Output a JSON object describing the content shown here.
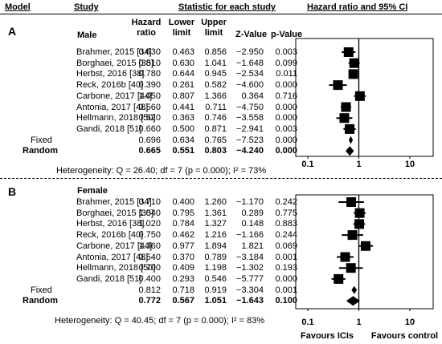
{
  "header": {
    "model": "Model",
    "study": "Study",
    "stats": "Statistic for each study",
    "forest": "Hazard ratio and 95% CI",
    "col_hr": [
      "Hazard",
      "ratio"
    ],
    "col_lower": [
      "Lower",
      "limit"
    ],
    "col_upper": [
      "Upper",
      "limit"
    ],
    "col_z": "Z-Value",
    "col_p": "p-Value"
  },
  "chart_data": {
    "type": "forest",
    "x_scale": "log",
    "xlim": [
      0.1,
      10
    ],
    "ticks": [
      "0.1",
      "1",
      "10"
    ],
    "reference_line": 1,
    "x_axis_captions": [
      "Favours  ICIs",
      "Favours control"
    ],
    "panels": [
      {
        "label": "A",
        "subgroup": "Male",
        "studies": [
          {
            "study": "Brahmer, 2015 [34]",
            "hr": "0.630",
            "lower": "0.463",
            "upper": "0.856",
            "z": "−2.950",
            "p": "0.003"
          },
          {
            "study": "Borghaei, 2015 [35]",
            "hr": "0.810",
            "lower": "0.630",
            "upper": "1.041",
            "z": "−1.648",
            "p": "0.099"
          },
          {
            "study": "Herbst, 2016 [38]",
            "hr": "0.780",
            "lower": "0.644",
            "upper": "0.945",
            "z": "−2.534",
            "p": "0.011"
          },
          {
            "study": "Reck, 2016b [40]",
            "hr": "0.390",
            "lower": "0.261",
            "upper": "0.582",
            "z": "−4.600",
            "p": "0.000"
          },
          {
            "study": "Carbone, 2017 [44]",
            "hr": "1.050",
            "lower": "0.807",
            "upper": "1.366",
            "z": "0.364",
            "p": "0.716"
          },
          {
            "study": "Antonia, 2017 [48]",
            "hr": "0.560",
            "lower": "0.441",
            "upper": "0.711",
            "z": "−4.750",
            "p": "0.000"
          },
          {
            "study": "Hellmann, 2018 [50]",
            "hr": "0.520",
            "lower": "0.363",
            "upper": "0.746",
            "z": "−3.558",
            "p": "0.000"
          },
          {
            "study": "Gandi, 2018 [51]",
            "hr": "0.660",
            "lower": "0.500",
            "upper": "0.871",
            "z": "−2.941",
            "p": "0.003"
          }
        ],
        "fixed": {
          "label": "Fixed",
          "hr": "0.696",
          "lower": "0.634",
          "upper": "0.765",
          "z": "−7.523",
          "p": "0.000"
        },
        "random": {
          "label": "Random",
          "hr": "0.665",
          "lower": "0.551",
          "upper": "0.803",
          "z": "−4.240",
          "p": "0.000"
        },
        "heterogeneity": "Heterogeneity: Q = 26.40; df = 7 (p = 0.000); I² = 73%"
      },
      {
        "label": "B",
        "subgroup": "Female",
        "studies": [
          {
            "study": "Brahmer, 2015 [34]",
            "hr": "0.710",
            "lower": "0.400",
            "upper": "1.260",
            "z": "−1.170",
            "p": "0.242"
          },
          {
            "study": "Borghaei, 2015 [35]",
            "hr": "1.040",
            "lower": "0.795",
            "upper": "1.361",
            "z": "0.289",
            "p": "0.775"
          },
          {
            "study": "Herbst, 2016 [38]",
            "hr": "1.020",
            "lower": "0.784",
            "upper": "1.327",
            "z": "0.148",
            "p": "0.883"
          },
          {
            "study": "Reck, 2016b [40]",
            "hr": "0.750",
            "lower": "0.462",
            "upper": "1.216",
            "z": "−1.166",
            "p": "0.244"
          },
          {
            "study": "Carbone, 2017 [44]",
            "hr": "1.360",
            "lower": "0.977",
            "upper": "1.894",
            "z": "1.821",
            "p": "0.069"
          },
          {
            "study": "Antonia, 2017 [48]",
            "hr": "0.540",
            "lower": "0.370",
            "upper": "0.789",
            "z": "−3.184",
            "p": "0.001"
          },
          {
            "study": "Hellmann, 2018 [50]",
            "hr": "0.700",
            "lower": "0.409",
            "upper": "1.198",
            "z": "−1.302",
            "p": "0.193"
          },
          {
            "study": "Gandi, 2018 [51]",
            "hr": "0.400",
            "lower": "0.293",
            "upper": "0.546",
            "z": "−5.777",
            "p": "0.000"
          }
        ],
        "fixed": {
          "label": "Fixed",
          "hr": "0.812",
          "lower": "0.718",
          "upper": "0.919",
          "z": "−3.304",
          "p": "0.001"
        },
        "random": {
          "label": "Random",
          "hr": "0.772",
          "lower": "0.567",
          "upper": "1.051",
          "z": "−1.643",
          "p": "0.100"
        },
        "heterogeneity": "Heterogeneity: Q = 40.45; df = 7 (p = 0.000); I² = 83%"
      }
    ]
  }
}
